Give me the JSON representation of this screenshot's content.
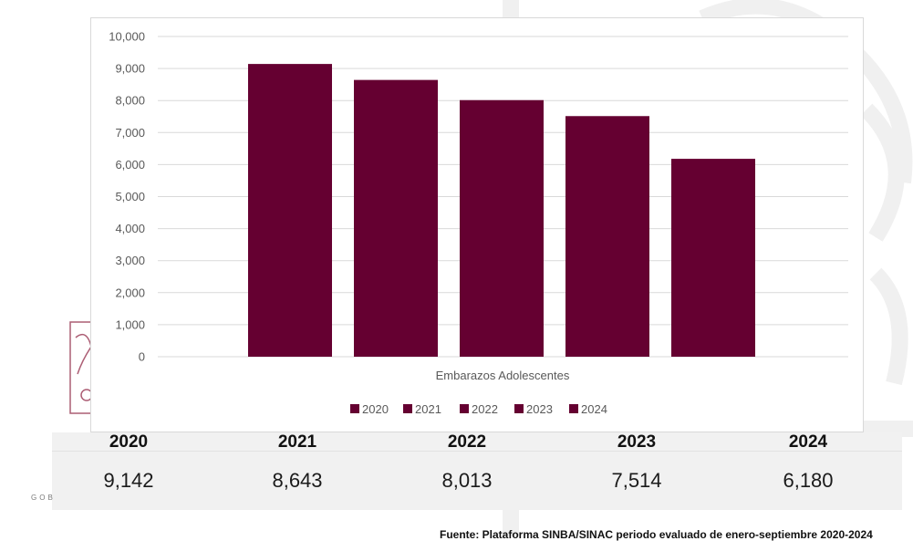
{
  "chart_data": {
    "type": "bar",
    "xlabel": "Embarazos Adolescentes",
    "ylim": [
      0,
      10000
    ],
    "yticks": [
      "0",
      "1,000",
      "2,000",
      "3,000",
      "4,000",
      "5,000",
      "6,000",
      "7,000",
      "8,000",
      "9,000",
      "10,000"
    ],
    "series": [
      {
        "name": "2020",
        "values": [
          9142
        ]
      },
      {
        "name": "2021",
        "values": [
          8643
        ]
      },
      {
        "name": "2022",
        "values": [
          8013
        ]
      },
      {
        "name": "2023",
        "values": [
          7514
        ]
      },
      {
        "name": "2024",
        "values": [
          6180
        ]
      }
    ],
    "grid": true,
    "legend_position": "bottom",
    "colors": {
      "bar": "#650031",
      "grid": "#d9d9d9",
      "axis_text": "#595959"
    }
  },
  "table": {
    "headers": [
      "2020",
      "2021",
      "2022",
      "2023",
      "2024"
    ],
    "values": [
      "9,142",
      "8,643",
      "8,013",
      "7,514",
      "6,180"
    ]
  },
  "footer": {
    "gob_text": "GOB",
    "source": "Fuente: Plataforma SINBA/SINAC periodo evaluado de enero-septiembre 2020-2024"
  }
}
